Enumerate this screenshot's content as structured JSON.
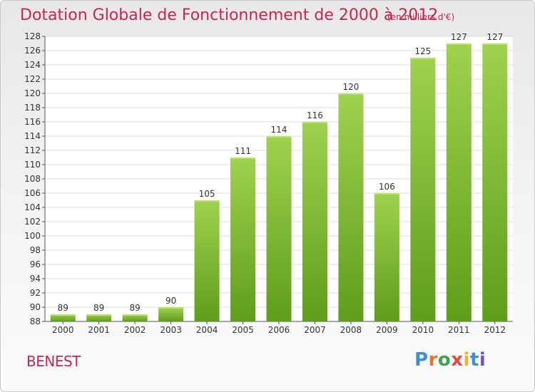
{
  "header": {
    "title": "Dotation Globale de Fonctionnement de 2000 à 2012",
    "subtitle": "(en milliers d'€)"
  },
  "place_name": "BENEST",
  "logo": {
    "text": "Proxiti",
    "colors": [
      "#3d8fd6",
      "#e8742b",
      "#3aa64a",
      "#e84a3a",
      "#f0b323",
      "#3d8fd6",
      "#7a4fb8"
    ]
  },
  "colors": {
    "title": "#c8264a",
    "bar_light": "#9fd24e",
    "bar_dark": "#5e9e1a",
    "grid": "#dddddd"
  },
  "chart_data": {
    "type": "bar",
    "title": "Dotation Globale de Fonctionnement de 2000 à 2012",
    "subtitle": "(en milliers d'€)",
    "categories": [
      "2000",
      "2001",
      "2002",
      "2003",
      "2004",
      "2005",
      "2006",
      "2007",
      "2008",
      "2009",
      "2010",
      "2011",
      "2012"
    ],
    "values": [
      89,
      89,
      89,
      90,
      105,
      111,
      114,
      116,
      120,
      106,
      125,
      127,
      127
    ],
    "ylim": [
      88,
      128
    ],
    "yticks": [
      88,
      90,
      92,
      94,
      96,
      98,
      100,
      102,
      104,
      106,
      108,
      110,
      112,
      114,
      116,
      118,
      120,
      122,
      124,
      126,
      128
    ],
    "grid": true,
    "data_labels": true
  }
}
